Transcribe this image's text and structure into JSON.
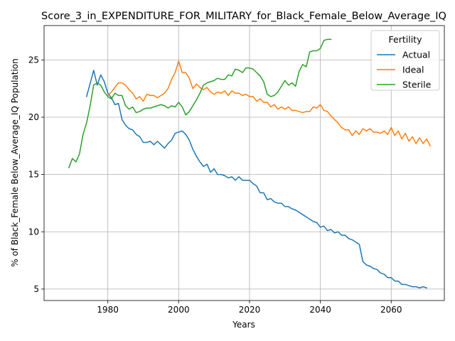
{
  "chart_data": {
    "type": "line",
    "title": "Score_3_in_EXPENDITURE_FOR_MILITARY_for_Black_Female_Below_Average_IQ",
    "xlabel": "Years",
    "ylabel": "% of Black_Female Below_Average_IQ Population",
    "xlim": [
      1962,
      2075
    ],
    "ylim": [
      4,
      28
    ],
    "xticks": [
      1980,
      2000,
      2020,
      2040,
      2060
    ],
    "yticks": [
      5,
      10,
      15,
      20,
      25
    ],
    "grid": true,
    "legend": {
      "title": "Fertility",
      "placement": "top-right"
    },
    "series": [
      {
        "name": "Actual",
        "color": "#1f77b4",
        "points": [
          [
            1974,
            21.8
          ],
          [
            1976,
            24.1
          ],
          [
            1977,
            22.8
          ],
          [
            1978,
            23.7
          ],
          [
            1979,
            23.1
          ],
          [
            1980,
            22.1
          ],
          [
            1981,
            21.7
          ],
          [
            1982,
            21.1
          ],
          [
            1983,
            21.2
          ],
          [
            1984,
            19.8
          ],
          [
            1985,
            19.3
          ],
          [
            1986,
            19.0
          ],
          [
            1987,
            18.9
          ],
          [
            1988,
            18.5
          ],
          [
            1989,
            18.3
          ],
          [
            1990,
            17.8
          ],
          [
            1991,
            17.8
          ],
          [
            1992,
            17.9
          ],
          [
            1993,
            17.6
          ],
          [
            1994,
            17.9
          ],
          [
            1995,
            17.6
          ],
          [
            1996,
            17.3
          ],
          [
            1997,
            17.7
          ],
          [
            1998,
            18.0
          ],
          [
            1999,
            18.6
          ],
          [
            2000,
            18.7
          ],
          [
            2001,
            18.8
          ],
          [
            2002,
            18.5
          ],
          [
            2003,
            18.0
          ],
          [
            2004,
            17.2
          ],
          [
            2005,
            16.6
          ],
          [
            2006,
            16.1
          ],
          [
            2007,
            15.7
          ],
          [
            2008,
            15.9
          ],
          [
            2009,
            15.2
          ],
          [
            2010,
            15.5
          ],
          [
            2011,
            15.0
          ],
          [
            2012,
            15.0
          ],
          [
            2013,
            14.9
          ],
          [
            2014,
            14.7
          ],
          [
            2015,
            14.8
          ],
          [
            2016,
            14.5
          ],
          [
            2017,
            14.8
          ],
          [
            2018,
            14.5
          ],
          [
            2019,
            14.5
          ],
          [
            2020,
            14.5
          ],
          [
            2021,
            14.2
          ],
          [
            2022,
            14.0
          ],
          [
            2023,
            13.4
          ],
          [
            2024,
            13.4
          ],
          [
            2025,
            12.8
          ],
          [
            2026,
            12.9
          ],
          [
            2027,
            12.6
          ],
          [
            2028,
            12.5
          ],
          [
            2029,
            12.5
          ],
          [
            2030,
            12.2
          ],
          [
            2031,
            12.2
          ],
          [
            2032,
            12.0
          ],
          [
            2033,
            11.9
          ],
          [
            2034,
            11.7
          ],
          [
            2035,
            11.5
          ],
          [
            2036,
            11.3
          ],
          [
            2037,
            11.1
          ],
          [
            2038,
            10.9
          ],
          [
            2039,
            10.8
          ],
          [
            2040,
            10.4
          ],
          [
            2041,
            10.5
          ],
          [
            2042,
            10.1
          ],
          [
            2043,
            10.2
          ],
          [
            2044,
            9.9
          ],
          [
            2045,
            10.0
          ],
          [
            2046,
            9.7
          ],
          [
            2047,
            9.7
          ],
          [
            2048,
            9.4
          ],
          [
            2049,
            9.3
          ],
          [
            2050,
            9.1
          ],
          [
            2051,
            8.9
          ],
          [
            2052,
            7.4
          ],
          [
            2053,
            7.1
          ],
          [
            2054,
            7.0
          ],
          [
            2055,
            6.8
          ],
          [
            2056,
            6.7
          ],
          [
            2057,
            6.4
          ],
          [
            2058,
            6.3
          ],
          [
            2059,
            6.0
          ],
          [
            2060,
            6.0
          ],
          [
            2061,
            5.7
          ],
          [
            2062,
            5.7
          ],
          [
            2063,
            5.4
          ],
          [
            2064,
            5.4
          ],
          [
            2065,
            5.3
          ],
          [
            2066,
            5.2
          ],
          [
            2067,
            5.2
          ],
          [
            2068,
            5.1
          ],
          [
            2069,
            5.2
          ],
          [
            2070,
            5.1
          ]
        ]
      },
      {
        "name": "Ideal",
        "color": "#ff7f0e",
        "points": [
          [
            1980,
            21.9
          ],
          [
            1981,
            22.2
          ],
          [
            1982,
            22.6
          ],
          [
            1983,
            23.0
          ],
          [
            1984,
            23.0
          ],
          [
            1985,
            22.8
          ],
          [
            1986,
            22.4
          ],
          [
            1987,
            22.1
          ],
          [
            1988,
            21.6
          ],
          [
            1989,
            21.8
          ],
          [
            1990,
            21.4
          ],
          [
            1991,
            22.0
          ],
          [
            1992,
            21.9
          ],
          [
            1993,
            21.9
          ],
          [
            1994,
            21.7
          ],
          [
            1995,
            21.9
          ],
          [
            1996,
            22.1
          ],
          [
            1997,
            22.5
          ],
          [
            1998,
            23.3
          ],
          [
            1999,
            23.9
          ],
          [
            2000,
            24.9
          ],
          [
            2001,
            23.9
          ],
          [
            2002,
            23.9
          ],
          [
            2003,
            23.4
          ],
          [
            2004,
            22.5
          ],
          [
            2005,
            22.9
          ],
          [
            2006,
            22.6
          ],
          [
            2007,
            22.4
          ],
          [
            2008,
            22.6
          ],
          [
            2009,
            22.2
          ],
          [
            2010,
            22.0
          ],
          [
            2011,
            22.2
          ],
          [
            2012,
            22.1
          ],
          [
            2013,
            22.3
          ],
          [
            2014,
            21.9
          ],
          [
            2015,
            22.3
          ],
          [
            2016,
            22.1
          ],
          [
            2017,
            22.1
          ],
          [
            2018,
            21.9
          ],
          [
            2019,
            22.0
          ],
          [
            2020,
            21.8
          ],
          [
            2021,
            21.8
          ],
          [
            2022,
            21.4
          ],
          [
            2023,
            21.6
          ],
          [
            2024,
            21.3
          ],
          [
            2025,
            21.3
          ],
          [
            2026,
            20.9
          ],
          [
            2027,
            21.1
          ],
          [
            2028,
            20.7
          ],
          [
            2029,
            20.9
          ],
          [
            2030,
            20.7
          ],
          [
            2031,
            20.9
          ],
          [
            2032,
            20.6
          ],
          [
            2033,
            20.6
          ],
          [
            2034,
            20.5
          ],
          [
            2035,
            20.4
          ],
          [
            2036,
            20.5
          ],
          [
            2037,
            20.5
          ],
          [
            2038,
            20.9
          ],
          [
            2039,
            20.8
          ],
          [
            2040,
            21.1
          ],
          [
            2041,
            20.6
          ],
          [
            2042,
            20.5
          ],
          [
            2043,
            20.1
          ],
          [
            2044,
            19.8
          ],
          [
            2045,
            19.5
          ],
          [
            2046,
            19.1
          ],
          [
            2047,
            18.9
          ],
          [
            2048,
            18.9
          ],
          [
            2049,
            18.4
          ],
          [
            2050,
            18.8
          ],
          [
            2051,
            18.5
          ],
          [
            2052,
            19.0
          ],
          [
            2053,
            18.8
          ],
          [
            2054,
            19.0
          ],
          [
            2055,
            18.7
          ],
          [
            2056,
            18.7
          ],
          [
            2057,
            18.6
          ],
          [
            2058,
            18.8
          ],
          [
            2059,
            18.5
          ],
          [
            2060,
            19.1
          ],
          [
            2061,
            18.4
          ],
          [
            2062,
            18.8
          ],
          [
            2063,
            18.1
          ],
          [
            2064,
            18.6
          ],
          [
            2065,
            17.9
          ],
          [
            2066,
            18.3
          ],
          [
            2067,
            17.7
          ],
          [
            2068,
            18.2
          ],
          [
            2069,
            17.7
          ],
          [
            2070,
            18.1
          ],
          [
            2071,
            17.5
          ]
        ]
      },
      {
        "name": "Sterile",
        "color": "#2ca02c",
        "points": [
          [
            1969,
            15.6
          ],
          [
            1970,
            16.4
          ],
          [
            1971,
            16.1
          ],
          [
            1972,
            16.8
          ],
          [
            1973,
            18.5
          ],
          [
            1974,
            19.5
          ],
          [
            1975,
            21.0
          ],
          [
            1976,
            22.8
          ],
          [
            1977,
            23.0
          ],
          [
            1978,
            22.8
          ],
          [
            1979,
            22.2
          ],
          [
            1980,
            21.8
          ],
          [
            1981,
            21.6
          ],
          [
            1982,
            22.1
          ],
          [
            1983,
            21.9
          ],
          [
            1984,
            21.9
          ],
          [
            1985,
            21.0
          ],
          [
            1986,
            20.7
          ],
          [
            1987,
            20.9
          ],
          [
            1988,
            20.4
          ],
          [
            1989,
            20.5
          ],
          [
            1990,
            20.7
          ],
          [
            1991,
            20.8
          ],
          [
            1992,
            20.8
          ],
          [
            1993,
            20.9
          ],
          [
            1994,
            21.0
          ],
          [
            1995,
            21.1
          ],
          [
            1996,
            21.0
          ],
          [
            1997,
            20.8
          ],
          [
            1998,
            21.0
          ],
          [
            1999,
            20.9
          ],
          [
            2000,
            21.3
          ],
          [
            2001,
            20.9
          ],
          [
            2002,
            20.2
          ],
          [
            2003,
            20.5
          ],
          [
            2004,
            21.0
          ],
          [
            2005,
            21.5
          ],
          [
            2006,
            22.1
          ],
          [
            2007,
            22.8
          ],
          [
            2008,
            23.0
          ],
          [
            2009,
            23.1
          ],
          [
            2010,
            23.2
          ],
          [
            2011,
            23.4
          ],
          [
            2012,
            23.3
          ],
          [
            2013,
            23.3
          ],
          [
            2014,
            23.7
          ],
          [
            2015,
            23.6
          ],
          [
            2016,
            24.2
          ],
          [
            2017,
            24.1
          ],
          [
            2018,
            23.9
          ],
          [
            2019,
            24.3
          ],
          [
            2020,
            24.3
          ],
          [
            2021,
            24.2
          ],
          [
            2022,
            23.9
          ],
          [
            2023,
            23.6
          ],
          [
            2024,
            23.1
          ],
          [
            2025,
            22.0
          ],
          [
            2026,
            21.8
          ],
          [
            2027,
            21.9
          ],
          [
            2028,
            22.2
          ],
          [
            2029,
            22.7
          ],
          [
            2030,
            23.2
          ],
          [
            2031,
            22.8
          ],
          [
            2032,
            23.0
          ],
          [
            2033,
            22.7
          ],
          [
            2034,
            24.0
          ],
          [
            2035,
            24.6
          ],
          [
            2036,
            24.4
          ],
          [
            2037,
            25.7
          ],
          [
            2038,
            25.8
          ],
          [
            2039,
            25.8
          ],
          [
            2040,
            26.0
          ],
          [
            2041,
            26.7
          ],
          [
            2042,
            26.8
          ],
          [
            2043,
            26.8
          ]
        ]
      }
    ]
  }
}
